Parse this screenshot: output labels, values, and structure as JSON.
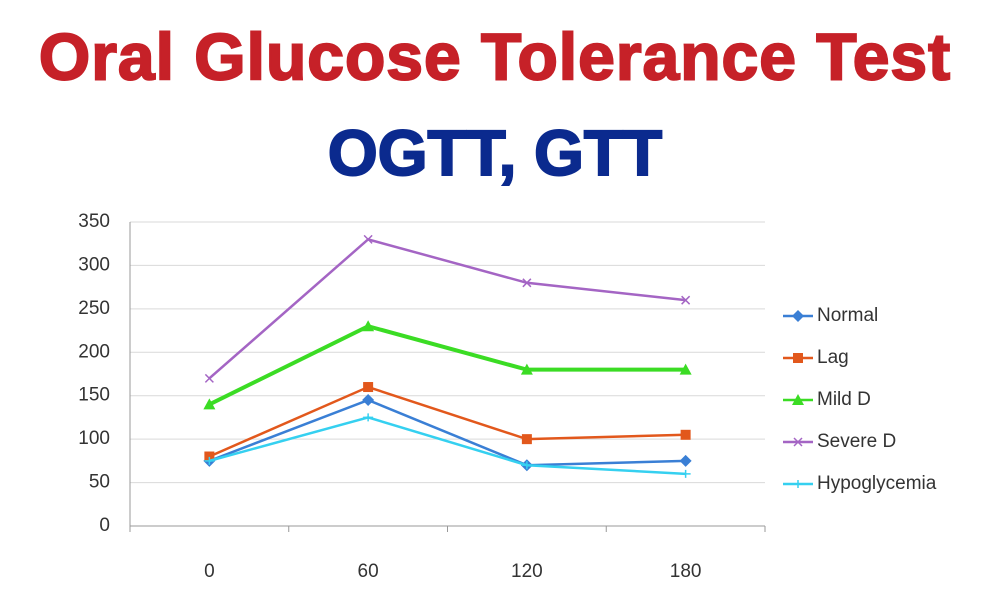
{
  "chart_data": {
    "type": "line",
    "title": "Oral Glucose Tolerance Test",
    "subtitle": "OGTT, GTT",
    "categories": [
      "0",
      "60",
      "120",
      "180"
    ],
    "series": [
      {
        "name": "Normal",
        "color": "#3a7fd5",
        "marker": "diamond",
        "values": [
          75,
          145,
          70,
          75
        ]
      },
      {
        "name": "Lag",
        "color": "#e2581c",
        "marker": "square",
        "values": [
          80,
          160,
          100,
          105
        ]
      },
      {
        "name": "Mild D",
        "color": "#3bdc24",
        "marker": "triangle",
        "values": [
          140,
          230,
          180,
          180
        ]
      },
      {
        "name": "Severe D",
        "color": "#a465c4",
        "marker": "x",
        "values": [
          170,
          330,
          280,
          260
        ]
      },
      {
        "name": "Hypoglycemia",
        "color": "#35d0f0",
        "marker": "star",
        "values": [
          75,
          125,
          70,
          60
        ]
      }
    ],
    "ylim": [
      0,
      350
    ],
    "yticks": [
      0,
      50,
      100,
      150,
      200,
      250,
      300,
      350
    ],
    "grid": true,
    "legend": "right"
  }
}
